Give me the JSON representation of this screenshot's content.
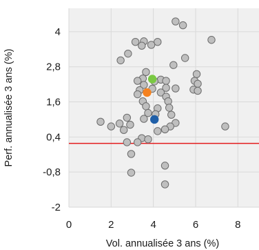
{
  "chart_data": {
    "type": "scatter",
    "xlabel": "Vol. annualisée 3 ans (%)",
    "ylabel": "Perf. annualisée 3 ans (%)",
    "xlim": [
      0,
      9
    ],
    "ylim": [
      -2,
      4.8
    ],
    "x_ticks": [
      0,
      2,
      4,
      6,
      8
    ],
    "y_ticks": [
      -2,
      -0.8,
      0.4,
      1.6,
      2.8,
      4
    ],
    "x_tick_labels": [
      "0",
      "2",
      "4",
      "6",
      "8"
    ],
    "y_tick_labels": [
      "-2",
      "-0,8",
      "0,4",
      "1,6",
      "2,8",
      "4"
    ],
    "grid": true,
    "legend": "none",
    "reference_line": {
      "y": 0.18,
      "color": "#e31a1c"
    },
    "colors": {
      "plot_bg": "#f0f0f0",
      "grid": "#d9d9d9",
      "peer": "#bfbfbf",
      "peer_stroke": "#6b6b6b"
    },
    "series": [
      {
        "color": "#bfbfbf",
        "points": [
          {
            "x": 5.05,
            "y": 4.35
          },
          {
            "x": 5.4,
            "y": 4.22
          },
          {
            "x": 6.75,
            "y": 3.72
          },
          {
            "x": 3.15,
            "y": 3.65
          },
          {
            "x": 3.55,
            "y": 3.67
          },
          {
            "x": 4.2,
            "y": 3.65
          },
          {
            "x": 3.45,
            "y": 3.52
          },
          {
            "x": 3.9,
            "y": 3.55
          },
          {
            "x": 2.8,
            "y": 3.25
          },
          {
            "x": 2.45,
            "y": 3.02
          },
          {
            "x": 5.5,
            "y": 3.1
          },
          {
            "x": 4.95,
            "y": 2.86
          },
          {
            "x": 6.05,
            "y": 2.55
          },
          {
            "x": 3.65,
            "y": 2.62
          },
          {
            "x": 3.5,
            "y": 2.4
          },
          {
            "x": 3.25,
            "y": 2.32
          },
          {
            "x": 4.35,
            "y": 2.36
          },
          {
            "x": 4.6,
            "y": 2.32
          },
          {
            "x": 5.95,
            "y": 2.32
          },
          {
            "x": 6.1,
            "y": 2.22
          },
          {
            "x": 4.05,
            "y": 2.3
          },
          {
            "x": 3.55,
            "y": 2.18
          },
          {
            "x": 3.95,
            "y": 2.05
          },
          {
            "x": 3.35,
            "y": 2.0
          },
          {
            "x": 4.6,
            "y": 2.08
          },
          {
            "x": 5.05,
            "y": 2.06
          },
          {
            "x": 5.9,
            "y": 2.02
          },
          {
            "x": 6.1,
            "y": 1.98
          },
          {
            "x": 4.35,
            "y": 1.92
          },
          {
            "x": 3.25,
            "y": 1.86
          },
          {
            "x": 4.6,
            "y": 1.78
          },
          {
            "x": 4.7,
            "y": 1.62
          },
          {
            "x": 3.5,
            "y": 1.62
          },
          {
            "x": 3.65,
            "y": 1.45
          },
          {
            "x": 4.2,
            "y": 1.38
          },
          {
            "x": 4.75,
            "y": 1.4
          },
          {
            "x": 3.75,
            "y": 1.22
          },
          {
            "x": 4.1,
            "y": 1.18
          },
          {
            "x": 4.85,
            "y": 1.16
          },
          {
            "x": 3.55,
            "y": 1.02
          },
          {
            "x": 2.75,
            "y": 1.06
          },
          {
            "x": 1.5,
            "y": 0.92
          },
          {
            "x": 2.4,
            "y": 0.86
          },
          {
            "x": 2.9,
            "y": 0.82
          },
          {
            "x": 5.05,
            "y": 0.88
          },
          {
            "x": 4.8,
            "y": 0.76
          },
          {
            "x": 4.55,
            "y": 0.66
          },
          {
            "x": 4.2,
            "y": 0.6
          },
          {
            "x": 2.0,
            "y": 0.76
          },
          {
            "x": 2.6,
            "y": 0.64
          },
          {
            "x": 7.4,
            "y": 0.76
          },
          {
            "x": 3.45,
            "y": 0.36
          },
          {
            "x": 3.75,
            "y": 0.32
          },
          {
            "x": 3.25,
            "y": 0.22
          },
          {
            "x": 2.75,
            "y": 0.22
          },
          {
            "x": 2.95,
            "y": -0.18
          },
          {
            "x": 4.55,
            "y": -0.58
          },
          {
            "x": 2.95,
            "y": -0.82
          },
          {
            "x": 4.55,
            "y": -1.22
          }
        ]
      },
      {
        "color": "#7ac943",
        "points": [
          {
            "x": 3.95,
            "y": 2.38
          }
        ]
      },
      {
        "color": "#f58220",
        "points": [
          {
            "x": 3.7,
            "y": 1.92
          }
        ]
      },
      {
        "color": "#1f5fa8",
        "points": [
          {
            "x": 4.05,
            "y": 1.0
          }
        ]
      }
    ]
  }
}
